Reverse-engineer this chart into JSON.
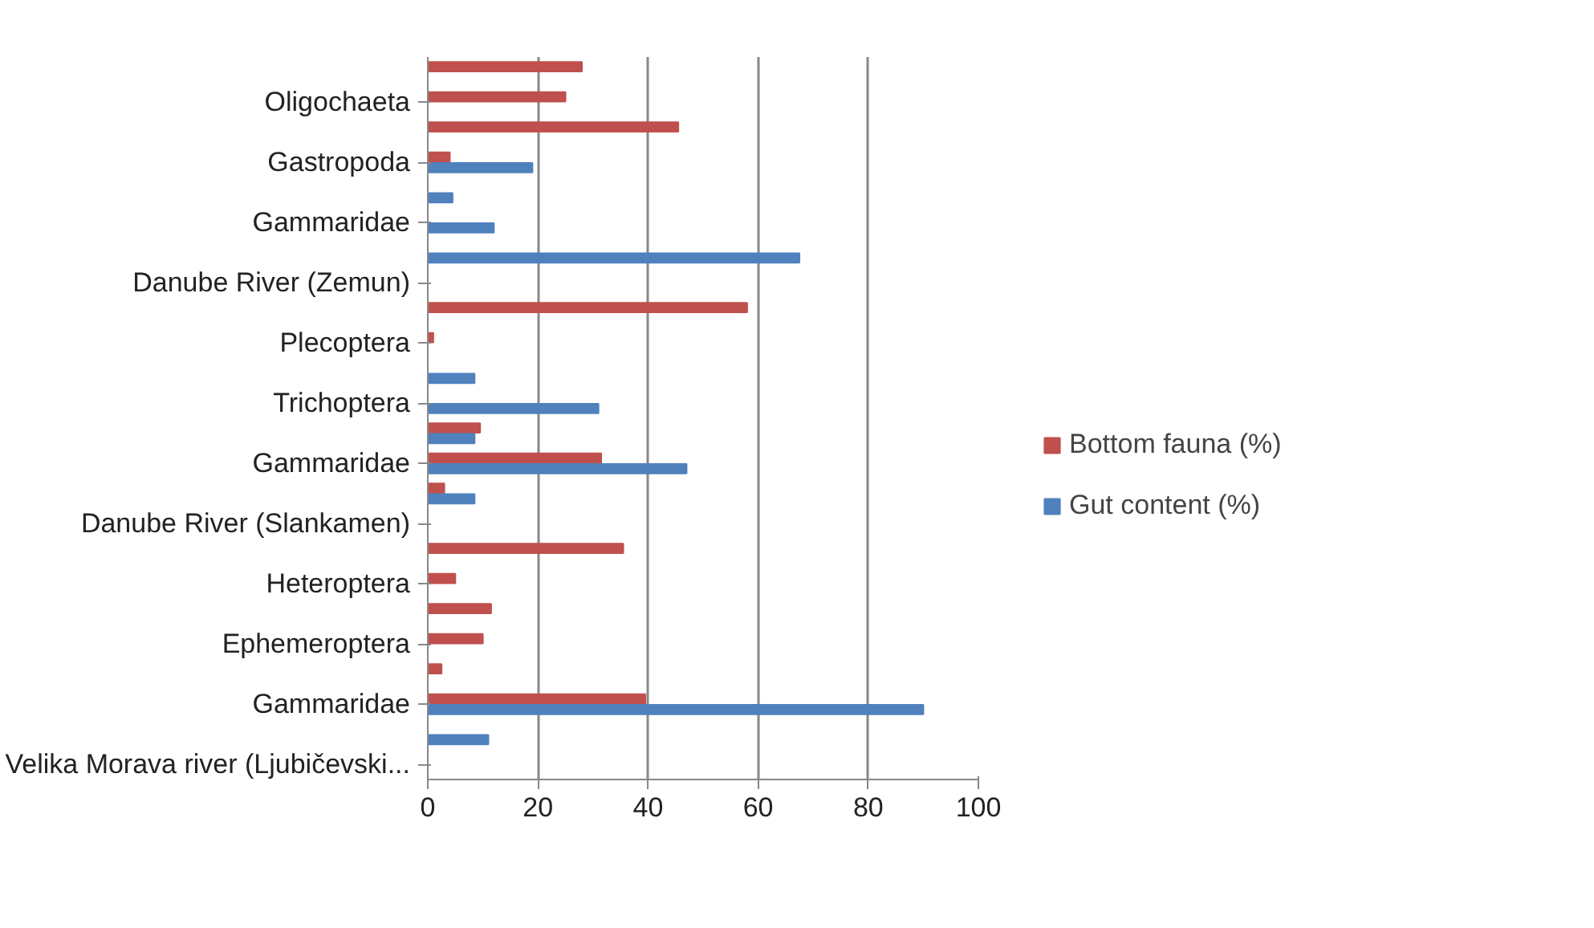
{
  "chart_data": {
    "type": "bar",
    "orientation": "horizontal",
    "categories": [
      null,
      "Oligochaeta",
      null,
      "Gastropoda",
      null,
      "Gammaridae",
      null,
      "Danube River (Zemun)",
      null,
      "Plecoptera",
      null,
      "Trichoptera",
      null,
      "Gammaridae",
      null,
      "Danube River (Slankamen)",
      null,
      "Heteroptera",
      null,
      "Ephemeroptera",
      null,
      "Gammaridae",
      null,
      "Velika Morava river (Ljubičevski..."
    ],
    "series": [
      {
        "name": "Bottom fauna (%)",
        "color": "#c0504d",
        "values": [
          28,
          25,
          45.5,
          4,
          null,
          null,
          null,
          null,
          58,
          1,
          null,
          null,
          9.5,
          31.5,
          3,
          null,
          35.5,
          5,
          11.5,
          10,
          2.5,
          39.5,
          null,
          null
        ]
      },
      {
        "name": "Gut content (%)",
        "color": "#4f81bd",
        "values": [
          null,
          null,
          null,
          19,
          4.5,
          12,
          67.5,
          null,
          null,
          null,
          8.5,
          31,
          8.5,
          47,
          8.5,
          null,
          null,
          null,
          null,
          null,
          null,
          90,
          11,
          null
        ]
      }
    ],
    "xlim": [
      0,
      100
    ],
    "xticks": [
      0,
      20,
      40,
      60,
      80,
      100
    ],
    "grid": "x",
    "legend": "right"
  }
}
